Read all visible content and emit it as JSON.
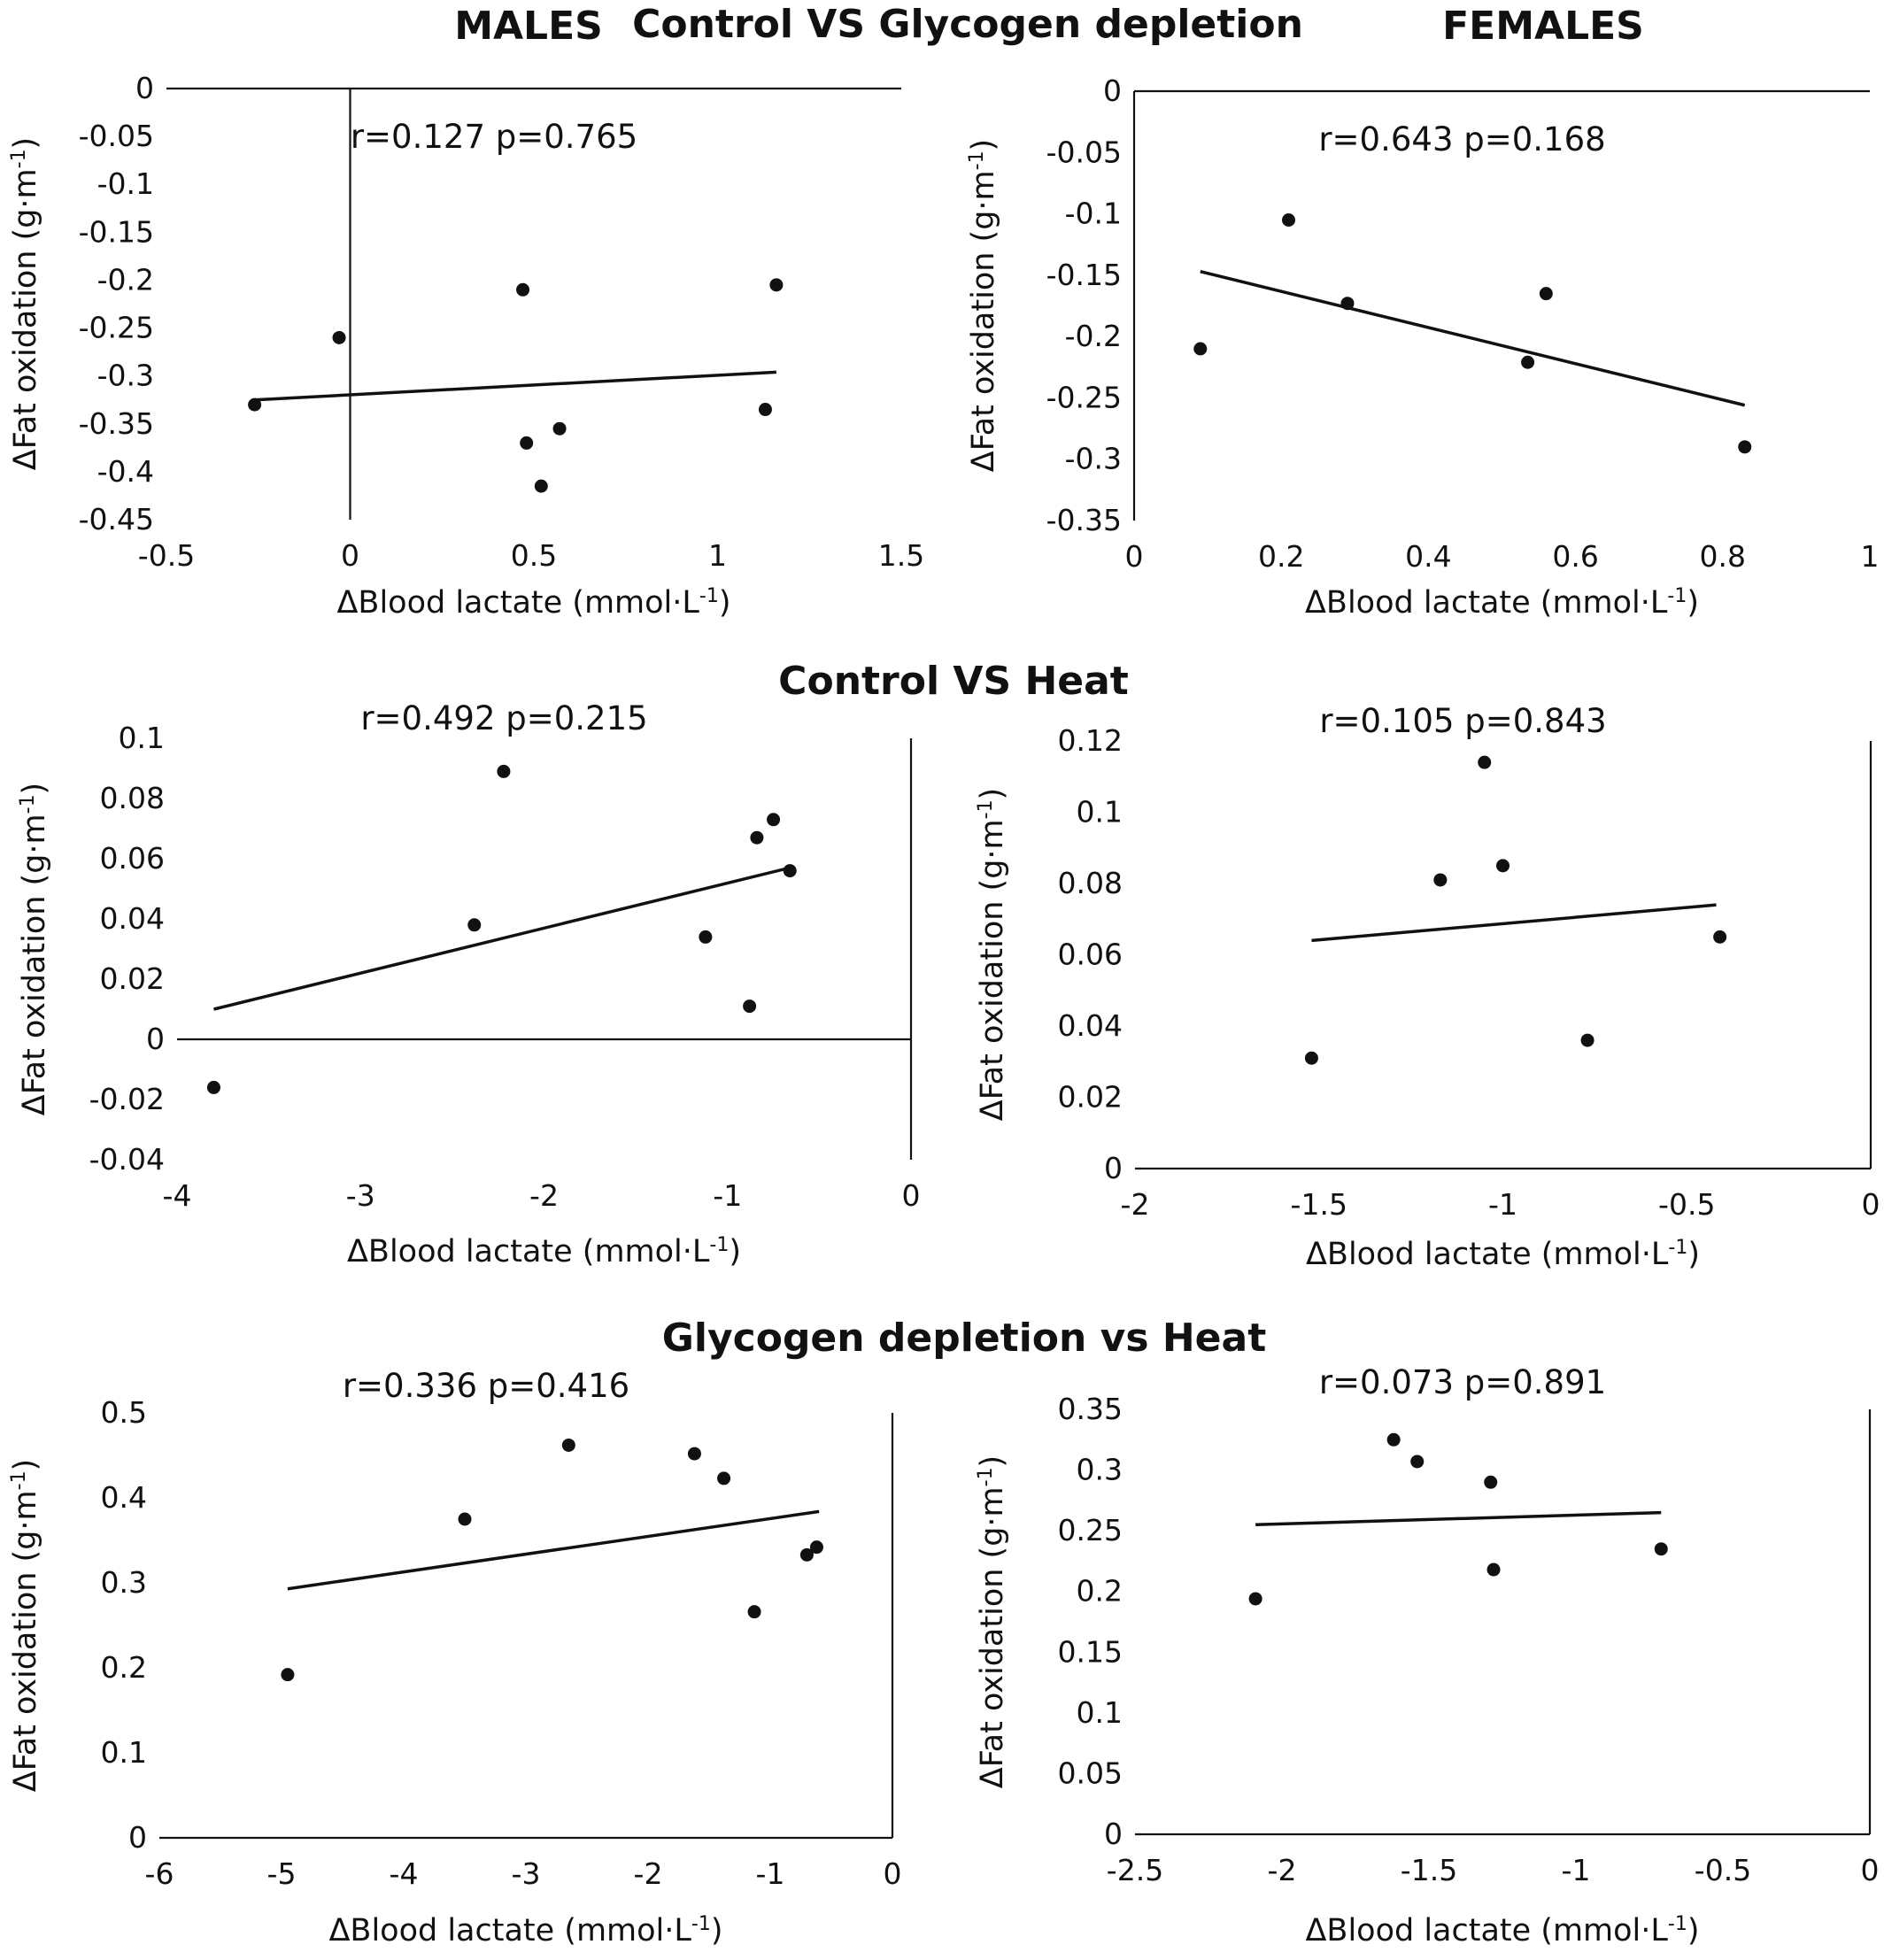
{
  "header": {
    "males": "MALES",
    "females": "FEMALES",
    "row_titles": [
      "Control VS Glycogen depletion",
      "Control VS Heat",
      "Glycogen depletion vs Heat"
    ]
  },
  "chart_data": [
    {
      "type": "scatter",
      "group": "MALES",
      "comparison": "Control VS Glycogen depletion",
      "annotation": "r=0.127 p=0.765",
      "xlabel": "ΔBlood lactate (mmol·L",
      "xlabel_sup": "-1",
      "xlabel_end": ")",
      "ylabel": "ΔFat oxidation (g·m",
      "ylabel_sup": "-1",
      "ylabel_end": ")",
      "xlim": [
        -0.5,
        1.5
      ],
      "ylim": [
        -0.45,
        0
      ],
      "xticks": [
        -0.5,
        0,
        0.5,
        1,
        1.5
      ],
      "xtick_labels": [
        "-0.5",
        "0",
        "0.5",
        "1",
        "1.5"
      ],
      "yticks": [
        0,
        -0.05,
        -0.1,
        -0.15,
        -0.2,
        -0.25,
        -0.3,
        -0.35,
        -0.4,
        -0.45
      ],
      "ytick_labels": [
        "0",
        "-0.05",
        "-0.1",
        "-0.15",
        "-0.2",
        "-0.25",
        "-0.3",
        "-0.35",
        "-0.4",
        "-0.45"
      ],
      "points": [
        [
          -0.26,
          -0.33
        ],
        [
          -0.03,
          -0.26
        ],
        [
          0.47,
          -0.21
        ],
        [
          0.48,
          -0.37
        ],
        [
          0.52,
          -0.415
        ],
        [
          0.57,
          -0.355
        ],
        [
          1.13,
          -0.335
        ],
        [
          1.16,
          -0.205
        ]
      ],
      "trendline": [
        [
          -0.26,
          -0.325
        ],
        [
          1.16,
          -0.296
        ]
      ]
    },
    {
      "type": "scatter",
      "group": "FEMALES",
      "comparison": "Control VS Glycogen depletion",
      "annotation": "r=0.643 p=0.168",
      "xlabel": "ΔBlood lactate (mmol·L",
      "xlabel_sup": "-1",
      "xlabel_end": ")",
      "ylabel": "ΔFat oxidation (g·m",
      "ylabel_sup": "-1",
      "ylabel_end": ")",
      "xlim": [
        0,
        1
      ],
      "ylim": [
        -0.35,
        0
      ],
      "xticks": [
        0,
        0.2,
        0.4,
        0.6,
        0.8,
        1
      ],
      "xtick_labels": [
        "0",
        "0.2",
        "0.4",
        "0.6",
        "0.8",
        "1"
      ],
      "yticks": [
        0,
        -0.05,
        -0.1,
        -0.15,
        -0.2,
        -0.25,
        -0.3,
        -0.35
      ],
      "ytick_labels": [
        "0",
        "-0.05",
        "-0.1",
        "-0.15",
        "-0.2",
        "-0.25",
        "-0.3",
        "-0.35"
      ],
      "points": [
        [
          0.09,
          -0.21
        ],
        [
          0.21,
          -0.105
        ],
        [
          0.29,
          -0.173
        ],
        [
          0.535,
          -0.221
        ],
        [
          0.56,
          -0.165
        ],
        [
          0.83,
          -0.29
        ]
      ],
      "trendline": [
        [
          0.09,
          -0.147
        ],
        [
          0.83,
          -0.256
        ]
      ]
    },
    {
      "type": "scatter",
      "group": "MALES",
      "comparison": "Control VS Heat",
      "annotation": "r=0.492 p=0.215",
      "xlabel": "ΔBlood lactate (mmol·L",
      "xlabel_sup": "-1",
      "xlabel_end": ")",
      "ylabel": "ΔFat oxidation (g·m",
      "ylabel_sup": "-1",
      "ylabel_end": ")",
      "xlim": [
        -4,
        0
      ],
      "ylim": [
        -0.04,
        0.1
      ],
      "xticks": [
        -4,
        -3,
        -2,
        -1,
        0
      ],
      "xtick_labels": [
        "-4",
        "-3",
        "-2",
        "-1",
        "0"
      ],
      "yticks": [
        0.1,
        0.08,
        0.06,
        0.04,
        0.02,
        0,
        -0.02,
        -0.04
      ],
      "ytick_labels": [
        "0.1",
        "0.08",
        "0.06",
        "0.04",
        "0.02",
        "0",
        "-0.02",
        "-0.04"
      ],
      "points": [
        [
          -3.8,
          -0.016
        ],
        [
          -2.38,
          0.038
        ],
        [
          -2.22,
          0.089
        ],
        [
          -1.12,
          0.034
        ],
        [
          -0.88,
          0.011
        ],
        [
          -0.84,
          0.067
        ],
        [
          -0.75,
          0.073
        ],
        [
          -0.66,
          0.056
        ]
      ],
      "trendline": [
        [
          -3.8,
          0.01
        ],
        [
          -0.66,
          0.057
        ]
      ]
    },
    {
      "type": "scatter",
      "group": "FEMALES",
      "comparison": "Control VS Heat",
      "annotation": "r=0.105 p=0.843",
      "xlabel": "ΔBlood lactate (mmol·L",
      "xlabel_sup": "-1",
      "xlabel_end": ")",
      "ylabel": "ΔFat oxidation (g·m",
      "ylabel_sup": "-1",
      "ylabel_end": ")",
      "xlim": [
        -2,
        0
      ],
      "ylim": [
        0,
        0.12
      ],
      "xticks": [
        -2,
        -1.5,
        -1,
        -0.5,
        0
      ],
      "xtick_labels": [
        "-2",
        "-1.5",
        "-1",
        "-0.5",
        "0"
      ],
      "yticks": [
        0.12,
        0.1,
        0.08,
        0.06,
        0.04,
        0.02,
        0
      ],
      "ytick_labels": [
        "0.12",
        "0.1",
        "0.08",
        "0.06",
        "0.04",
        "0.02",
        "0"
      ],
      "points": [
        [
          -1.52,
          0.031
        ],
        [
          -1.17,
          0.081
        ],
        [
          -1.05,
          0.114
        ],
        [
          -1.0,
          0.085
        ],
        [
          -0.77,
          0.036
        ],
        [
          -0.41,
          0.065
        ]
      ],
      "trendline": [
        [
          -1.52,
          0.064
        ],
        [
          -0.42,
          0.074
        ]
      ]
    },
    {
      "type": "scatter",
      "group": "MALES",
      "comparison": "Glycogen depletion vs Heat",
      "annotation": "r=0.336 p=0.416",
      "xlabel": "ΔBlood lactate (mmol·L",
      "xlabel_sup": "-1",
      "xlabel_end": ")",
      "ylabel": "ΔFat oxidation (g·m",
      "ylabel_sup": "-1",
      "ylabel_end": ")",
      "xlim": [
        -6,
        0
      ],
      "ylim": [
        0,
        0.5
      ],
      "xticks": [
        -6,
        -5,
        -4,
        -3,
        -2,
        -1,
        0
      ],
      "xtick_labels": [
        "-6",
        "-5",
        "-4",
        "-3",
        "-2",
        "-1",
        "0"
      ],
      "yticks": [
        0.5,
        0.4,
        0.3,
        0.2,
        0.1,
        0
      ],
      "ytick_labels": [
        "0.5",
        "0.4",
        "0.3",
        "0.2",
        "0.1",
        "0"
      ],
      "points": [
        [
          -4.95,
          0.192
        ],
        [
          -3.5,
          0.375
        ],
        [
          -2.65,
          0.462
        ],
        [
          -1.62,
          0.452
        ],
        [
          -1.38,
          0.423
        ],
        [
          -1.13,
          0.266
        ],
        [
          -0.7,
          0.333
        ],
        [
          -0.62,
          0.342
        ]
      ],
      "trendline": [
        [
          -4.95,
          0.293
        ],
        [
          -0.6,
          0.384
        ]
      ]
    },
    {
      "type": "scatter",
      "group": "FEMALES",
      "comparison": "Glycogen depletion vs Heat",
      "annotation": "r=0.073 p=0.891",
      "xlabel": "ΔBlood lactate (mmol·L",
      "xlabel_sup": "-1",
      "xlabel_end": ")",
      "ylabel": "ΔFat oxidation (g·m",
      "ylabel_sup": "-1",
      "ylabel_end": ")",
      "xlim": [
        -2.5,
        0
      ],
      "ylim": [
        0,
        0.35
      ],
      "xticks": [
        -2.5,
        -2,
        -1.5,
        -1,
        -0.5,
        0
      ],
      "xtick_labels": [
        "-2.5",
        "-2",
        "-1.5",
        "-1",
        "-0.5",
        "0"
      ],
      "yticks": [
        0.35,
        0.3,
        0.25,
        0.2,
        0.15,
        0.1,
        0.05,
        0
      ],
      "ytick_labels": [
        "0.35",
        "0.3",
        "0.25",
        "0.2",
        "0.15",
        "0.1",
        "0.05",
        "0"
      ],
      "points": [
        [
          -2.09,
          0.194
        ],
        [
          -1.62,
          0.325
        ],
        [
          -1.54,
          0.307
        ],
        [
          -1.29,
          0.29
        ],
        [
          -1.28,
          0.218
        ],
        [
          -0.71,
          0.235
        ]
      ],
      "trendline": [
        [
          -2.09,
          0.255
        ],
        [
          -0.71,
          0.265
        ]
      ]
    }
  ]
}
